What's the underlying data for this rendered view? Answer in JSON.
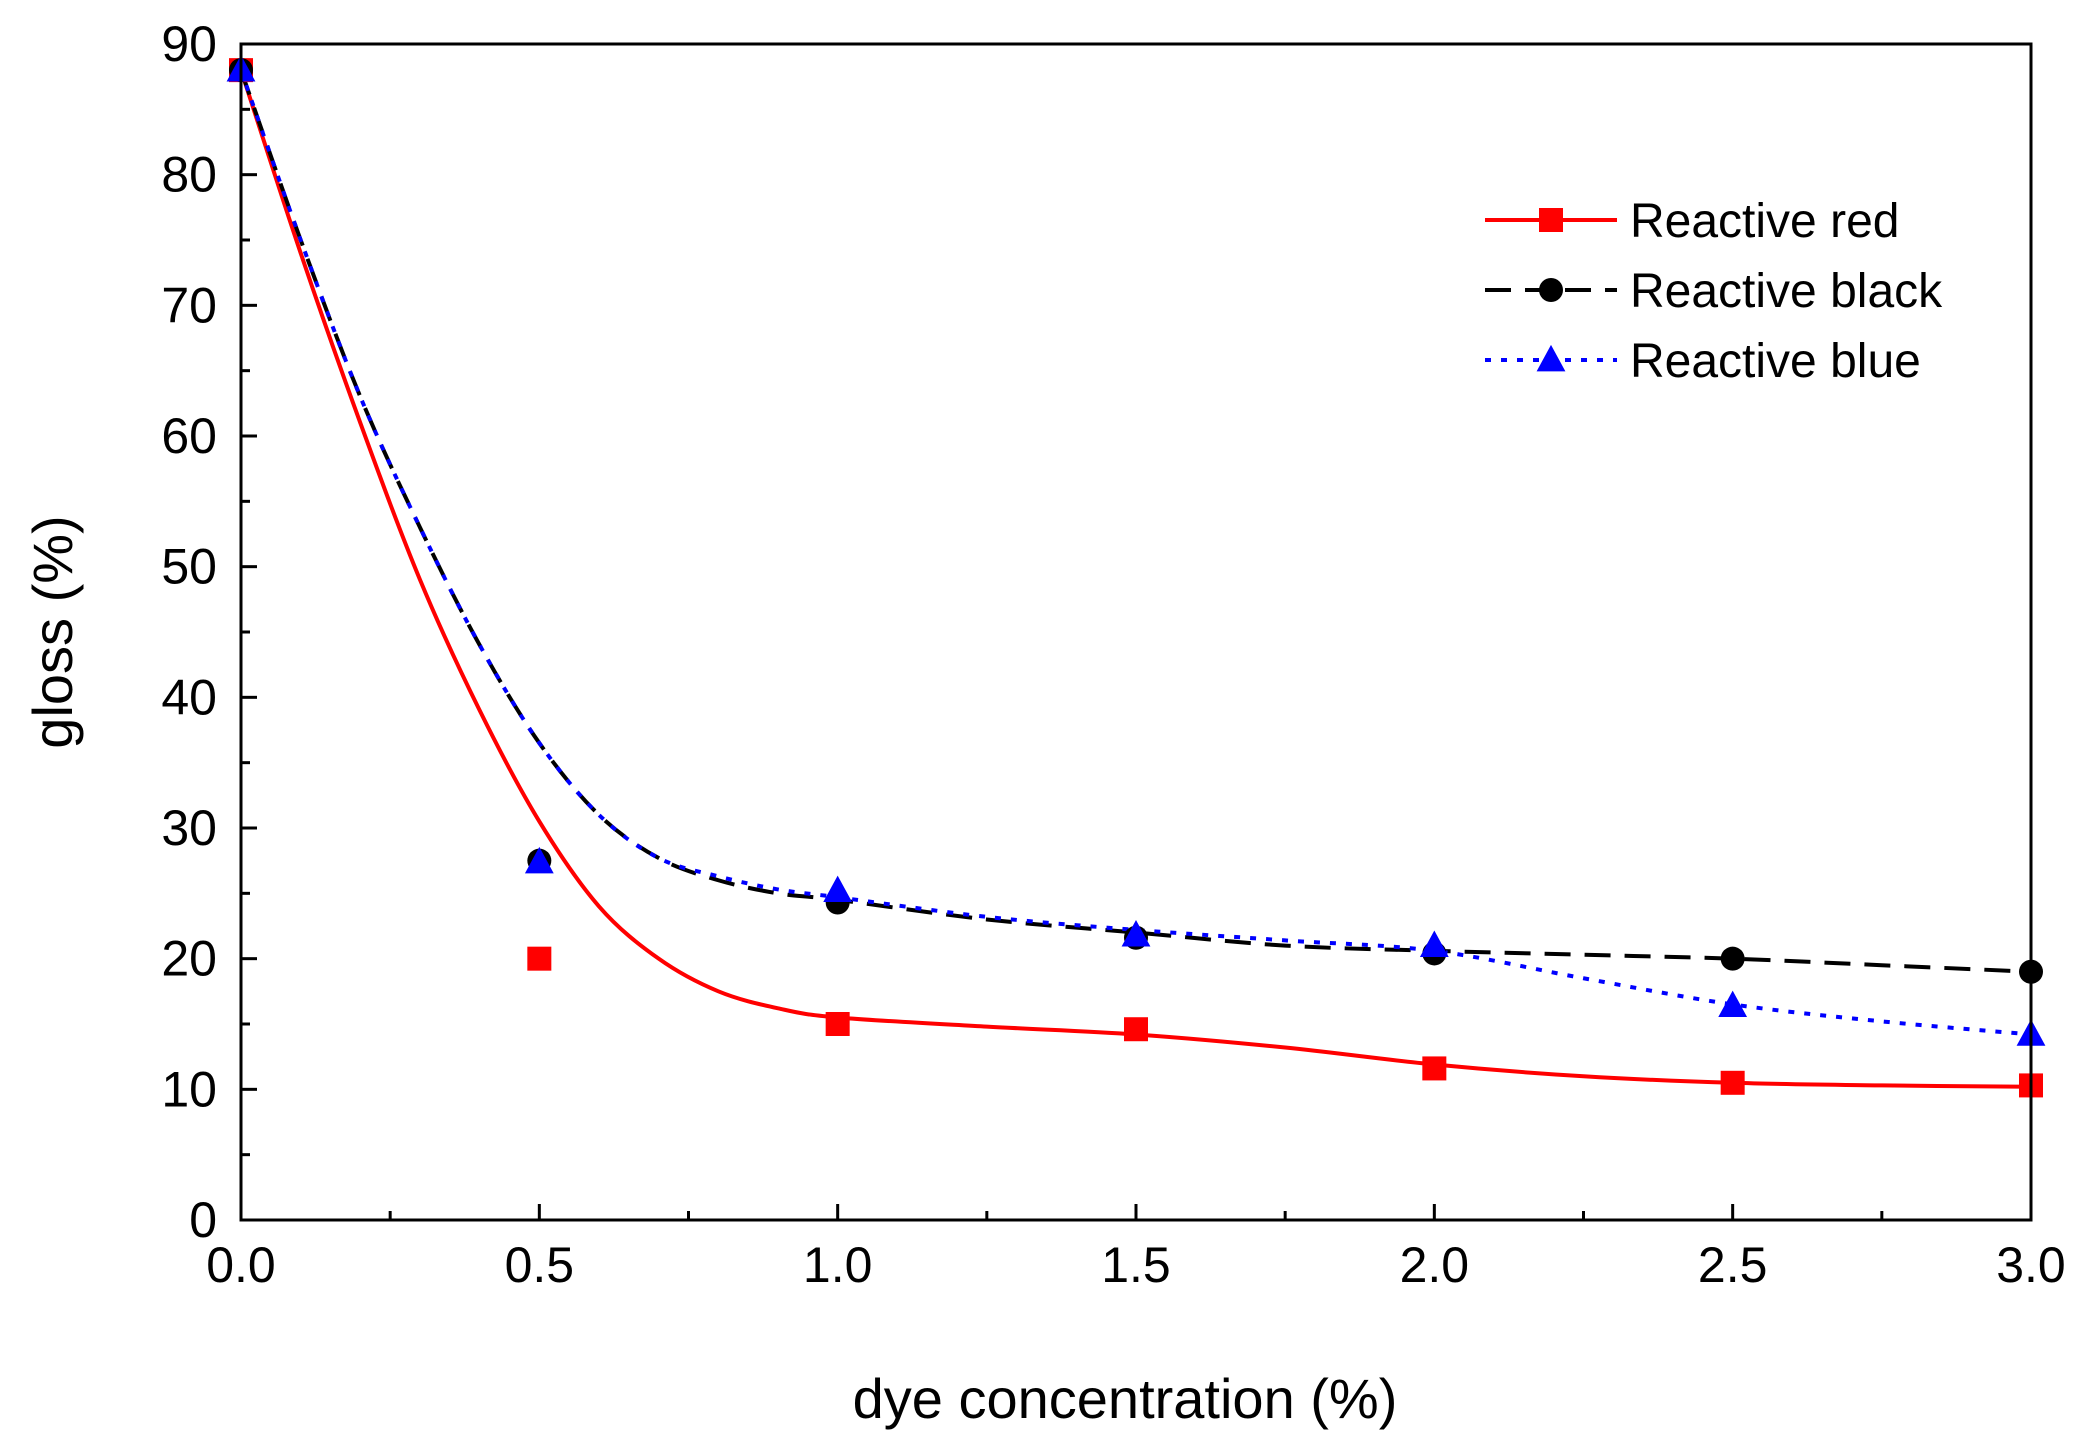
{
  "chart_data": {
    "type": "line",
    "title": "",
    "xlabel": "dye concentration (%)",
    "ylabel": "gloss (%)",
    "xlim": [
      0,
      3
    ],
    "ylim": [
      0,
      90
    ],
    "xticks": [
      0,
      0.5,
      1,
      1.5,
      2,
      2.5,
      3
    ],
    "xtick_labels": [
      "0.0",
      "0.5",
      "1.0",
      "1.5",
      "2.0",
      "2.5",
      "3.0"
    ],
    "yticks": [
      0,
      10,
      20,
      30,
      40,
      50,
      60,
      70,
      80,
      90
    ],
    "ytick_labels": [
      "0",
      "10",
      "20",
      "30",
      "40",
      "50",
      "60",
      "70",
      "80",
      "90"
    ],
    "x_minor_step": 0.25,
    "y_minor_step": 5,
    "legend_position": "top-right",
    "series": [
      {
        "name": "Reactive red",
        "color": "#ff0000",
        "line_style": "solid",
        "marker": "square",
        "x": [
          0,
          0.5,
          1,
          1.5,
          2,
          2.5,
          3
        ],
        "values": [
          88,
          20,
          15,
          14.6,
          11.6,
          10.5,
          10.3
        ],
        "fit_curve": {
          "x": [
            0,
            0.1,
            0.2,
            0.3,
            0.4,
            0.5,
            0.6,
            0.7,
            0.8,
            0.9,
            1.0,
            1.25,
            1.5,
            1.75,
            2.0,
            2.25,
            2.5,
            2.75,
            3.0
          ],
          "y": [
            88,
            74,
            61,
            49,
            39,
            30.5,
            24,
            20,
            17.5,
            16.2,
            15.5,
            14.8,
            14.2,
            13.2,
            11.9,
            11.0,
            10.5,
            10.3,
            10.2
          ]
        }
      },
      {
        "name": "Reactive black",
        "color": "#000000",
        "line_style": "dashed",
        "marker": "circle",
        "x": [
          0,
          0.5,
          1,
          1.5,
          2,
          2.5,
          3
        ],
        "values": [
          88,
          27.5,
          24.3,
          21.6,
          20.4,
          20,
          19
        ],
        "fit_curve": {
          "x": [
            0,
            0.1,
            0.2,
            0.3,
            0.4,
            0.5,
            0.6,
            0.7,
            0.8,
            0.9,
            1.0,
            1.25,
            1.5,
            1.75,
            2.0,
            2.25,
            2.5,
            2.75,
            3.0
          ],
          "y": [
            88,
            75,
            63,
            53,
            44,
            36.5,
            31,
            27.7,
            26,
            25,
            24.5,
            23,
            22,
            21,
            20.6,
            20.3,
            20,
            19.5,
            19
          ]
        }
      },
      {
        "name": "Reactive blue",
        "color": "#0000ff",
        "line_style": "dotted",
        "marker": "triangle",
        "x": [
          0,
          0.5,
          1,
          1.5,
          2,
          2.5,
          3
        ],
        "values": [
          88,
          27.4,
          25.2,
          21.8,
          21,
          16.4,
          14.2
        ],
        "fit_curve": {
          "x": [
            0,
            0.1,
            0.2,
            0.3,
            0.4,
            0.5,
            0.6,
            0.7,
            0.8,
            0.9,
            1.0,
            1.25,
            1.5,
            1.75,
            2.0,
            2.25,
            2.5,
            2.75,
            3.0
          ],
          "y": [
            88,
            75,
            63,
            53,
            44,
            36.5,
            31,
            27.7,
            26.3,
            25.3,
            24.7,
            23.2,
            22.2,
            21.4,
            20.6,
            18.5,
            16.5,
            15.2,
            14.2
          ]
        }
      }
    ]
  }
}
